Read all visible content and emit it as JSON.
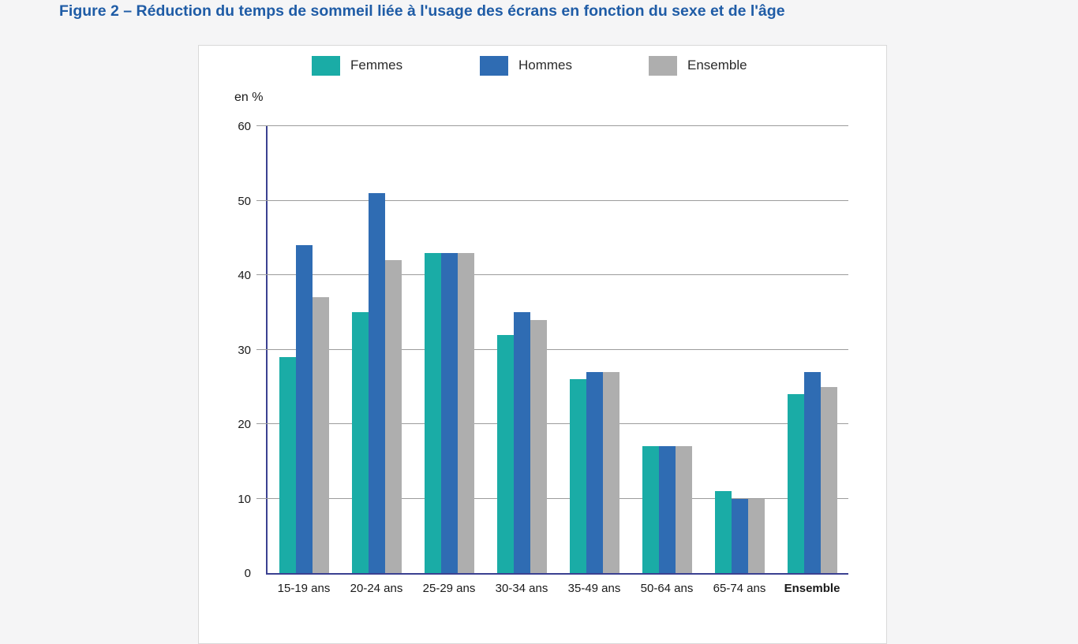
{
  "figure": {
    "title": "Figure 2 – Réduction du temps de sommeil liée à l'usage des écrans en fonction du sexe et de l'âge"
  },
  "colors": {
    "title": "#1f5ca6",
    "femmes": "#1aaca6",
    "hommes": "#2f6cb3",
    "ensemble": "#aeaeae",
    "axis": "#3b4191",
    "gridline": "#9c9c9c",
    "page_bg": "#f5f5f6",
    "panel_bg": "#ffffff",
    "panel_border": "#d9d9d9",
    "text": "#1a1a1a"
  },
  "chart_data": {
    "type": "bar",
    "title": "Figure 2 – Réduction du temps de sommeil liée à l'usage des écrans en fonction du sexe et de l'âge",
    "unit_label": "en %",
    "categories": [
      "15-19 ans",
      "20-24 ans",
      "25-29 ans",
      "30-34 ans",
      "35-49 ans",
      "50-64 ans",
      "65-74 ans",
      "Ensemble"
    ],
    "series": [
      {
        "name": "Femmes",
        "color_key": "femmes",
        "values": [
          29,
          35,
          43,
          32,
          26,
          17,
          11,
          24
        ]
      },
      {
        "name": "Hommes",
        "color_key": "hommes",
        "values": [
          44,
          51,
          43,
          35,
          27,
          17,
          10,
          27
        ]
      },
      {
        "name": "Ensemble",
        "color_key": "ensemble",
        "values": [
          37,
          42,
          43,
          34,
          27,
          17,
          10,
          25
        ]
      }
    ],
    "ylim": [
      0,
      60
    ],
    "yticks": [
      0,
      10,
      20,
      30,
      40,
      50,
      60
    ],
    "grid": "horizontal",
    "legend_position": "top",
    "last_category_bold": true
  }
}
